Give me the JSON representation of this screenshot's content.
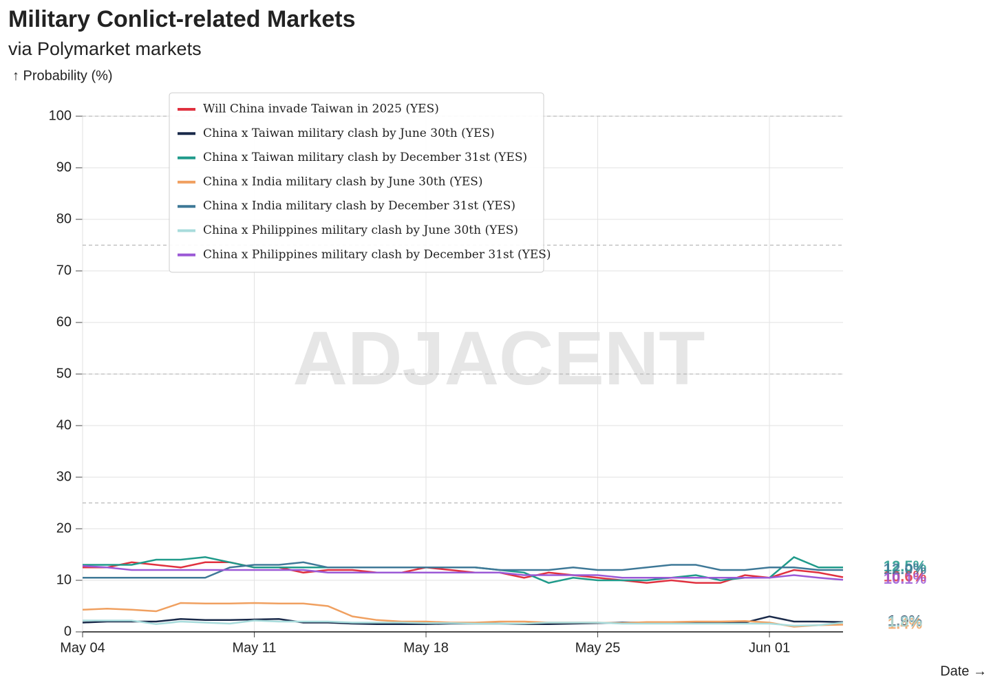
{
  "chart_data": {
    "type": "line",
    "title": "Military Conlict-related Markets",
    "subtitle": "via Polymarket markets",
    "y_label": "↑ Probability (%)",
    "x_label": "Date →",
    "watermark": "ADJACENT",
    "categories": [
      "May 04",
      "May 05",
      "May 06",
      "May 07",
      "May 08",
      "May 09",
      "May 10",
      "May 11",
      "May 12",
      "May 13",
      "May 14",
      "May 15",
      "May 16",
      "May 17",
      "May 18",
      "May 19",
      "May 20",
      "May 21",
      "May 22",
      "May 23",
      "May 24",
      "May 25",
      "May 26",
      "May 27",
      "May 28",
      "May 29",
      "May 30",
      "May 31",
      "Jun 01",
      "Jun 02",
      "Jun 03",
      "Jun 04"
    ],
    "xticks": [
      "May 04",
      "May 11",
      "May 18",
      "May 25",
      "Jun 01"
    ],
    "ylim": [
      0,
      100
    ],
    "yticks": [
      0,
      10,
      20,
      30,
      40,
      50,
      60,
      70,
      80,
      90,
      100
    ],
    "reference_lines": [
      25,
      50,
      75,
      100
    ],
    "grid": true,
    "series": [
      {
        "name": "Will China invade Taiwan in 2025 (YES)",
        "color": "#e0313f",
        "end_label": "10.6%",
        "values": [
          12.5,
          12.5,
          13.5,
          13,
          12.5,
          13.5,
          13.5,
          12.5,
          12.5,
          11.5,
          12,
          12,
          11.5,
          11.5,
          12.5,
          12,
          11.5,
          11.5,
          10.5,
          11.5,
          11,
          10.5,
          10,
          9.5,
          10,
          9.5,
          9.5,
          11,
          10.5,
          12,
          11.5,
          10.6
        ]
      },
      {
        "name": "China x Taiwan military clash by June 30th (YES)",
        "color": "#1a2a4a",
        "end_label": "1.9%",
        "values": [
          1.8,
          2,
          2,
          2,
          2.5,
          2.3,
          2.3,
          2.4,
          2.5,
          1.8,
          1.8,
          1.6,
          1.5,
          1.5,
          1.5,
          1.6,
          1.6,
          1.6,
          1.5,
          1.5,
          1.6,
          1.7,
          1.8,
          1.8,
          1.7,
          1.7,
          1.7,
          1.8,
          3,
          2,
          2,
          1.9
        ]
      },
      {
        "name": "China x Taiwan military clash by December 31st (YES)",
        "color": "#1f9a8a",
        "end_label": "12.5%",
        "values": [
          13,
          13,
          13,
          14,
          14,
          14.5,
          13.5,
          12.5,
          12.5,
          12.5,
          12.5,
          12.5,
          12.5,
          12.5,
          12.5,
          12.5,
          12.5,
          12,
          11.5,
          9.5,
          10.5,
          10,
          10,
          10,
          10.5,
          11,
          10,
          10.5,
          10.5,
          14.5,
          12.5,
          12.5
        ]
      },
      {
        "name": "China x India military clash by June 30th (YES)",
        "color": "#f0a060",
        "end_label": "1.4%",
        "values": [
          4.3,
          4.5,
          4.3,
          4,
          5.6,
          5.5,
          5.5,
          5.6,
          5.5,
          5.5,
          5,
          3,
          2.3,
          2,
          2,
          1.8,
          1.8,
          2,
          2,
          1.8,
          1.8,
          1.8,
          1.7,
          1.9,
          1.9,
          2,
          2,
          2.1,
          1.8,
          1,
          1.3,
          1.4
        ]
      },
      {
        "name": "China x India military clash by December 31st (YES)",
        "color": "#3e7897",
        "end_label": "12.0%",
        "values": [
          10.5,
          10.5,
          10.5,
          10.5,
          10.5,
          10.5,
          12.5,
          13,
          13,
          13.5,
          12.5,
          12.5,
          12.5,
          12.5,
          12.5,
          12.5,
          12.5,
          12,
          12,
          12,
          12.5,
          12,
          12,
          12.5,
          13,
          13,
          12,
          12,
          12.5,
          12.5,
          12,
          12
        ]
      },
      {
        "name": "China x Philippines military clash by June 30th (YES)",
        "color": "#a8dcdc",
        "end_label": "1.8%",
        "values": [
          2.2,
          2.2,
          2.2,
          1.5,
          2,
          1.8,
          1.6,
          2.2,
          2,
          2,
          2,
          1.8,
          1.8,
          1.8,
          1.7,
          1.7,
          1.6,
          1.6,
          1.6,
          1.8,
          1.8,
          1.8,
          1.6,
          1.6,
          1.6,
          1.6,
          1.6,
          1.6,
          1.6,
          1.2,
          1.3,
          1.8
        ]
      },
      {
        "name": "China x Philippines military clash by December 31st (YES)",
        "color": "#9b59d6",
        "end_label": "10.1%",
        "values": [
          12.8,
          12.5,
          12,
          12,
          12,
          12,
          12,
          12,
          12,
          12,
          11.5,
          11.5,
          11.5,
          11.5,
          11.5,
          11.5,
          11.5,
          11.5,
          11,
          11,
          11,
          11,
          10.5,
          10.5,
          10.5,
          10.5,
          10.5,
          10.5,
          10.5,
          11,
          10.5,
          10.1
        ]
      }
    ]
  }
}
